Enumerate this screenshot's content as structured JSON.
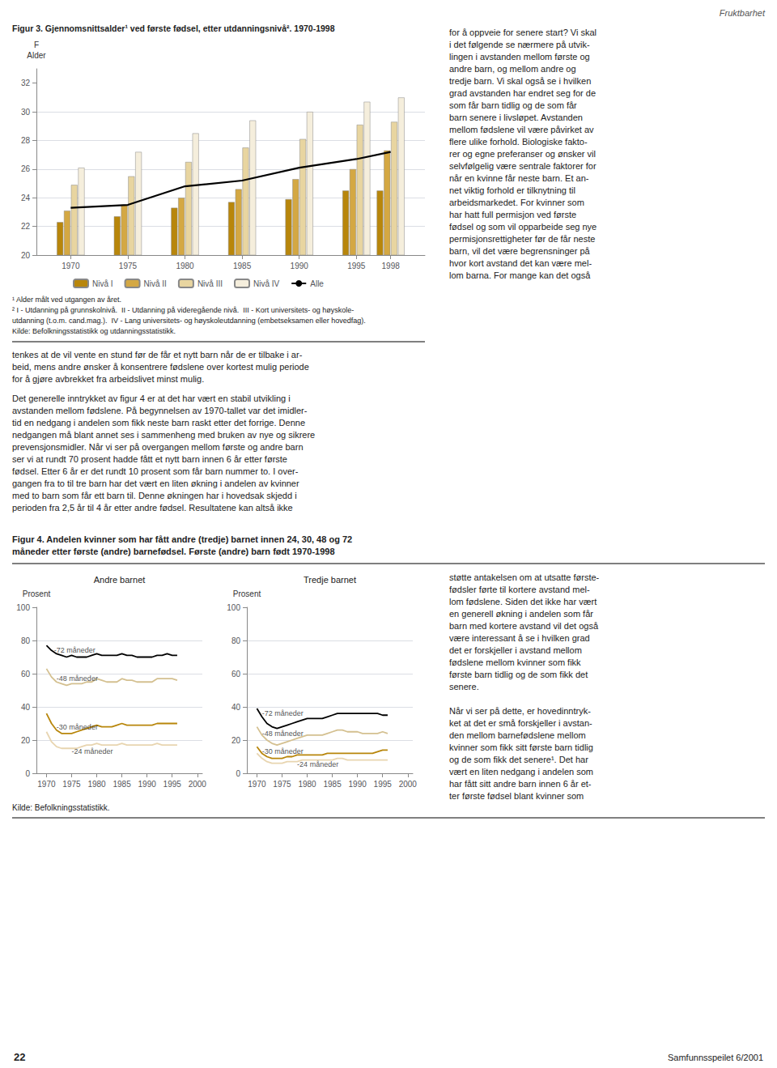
{
  "page": {
    "header": "Fruktbarhet",
    "footer_left": "22",
    "footer_right": "Samfunnsspeilet 6/2001",
    "column_text_1": "for å oppveie for senere start? Vi skal\ni det følgende se nærmere på utvik-\nlingen i avstanden mellom første og\nandre barn, og mellom andre og\ntredje barn. Vi skal også se i hvilken\ngrad avstanden har endret seg for de\nsom får barn tidlig og de som får\nbarn senere i livsløpet. Avstanden\nmellom fødslene vil være påvirket av\nflere ulike forhold. Biologiske fakto-\nrer og egne preferanser og ønsker vil\nselvfølgelig være sentrale faktorer for\nnår en kvinne får neste barn. Et an-\nnet viktig forhold er tilknytning til\narbeidsmarkedet. For kvinner som\nhar hatt full permisjon ved første\nfødsel og som vil opparbeide seg nye\npermisjonsrettigheter før de får neste\nbarn, vil det være begrensninger på\nhvor kort avstand det kan være mel-\nlom barna. For mange kan det også",
    "full_text_1": "tenkes at de vil vente en stund før de får et nytt barn når de er tilbake i ar-\nbeid, mens andre ønsker å konsentrere fødslene over kortest mulig periode\nfor å gjøre avbrekket fra arbeidslivet minst mulig.",
    "full_text_2": "Det generelle inntrykket av figur 4 er at det har vært en stabil utvikling i\navstanden mellom fødslene. På begynnelsen av 1970-tallet var det imidler-\ntid en nedgang i andelen som fikk neste barn raskt etter det forrige. Denne\nnedgangen må blant annet ses i sammenheng med bruken av nye og sikrere\nprevensjonsmidler. Når vi ser på overgangen mellom første og andre barn\nser vi at rundt 70 prosent hadde fått et nytt barn innen 6 år etter første\nfødsel. Etter 6 år er det rundt 10 prosent som får barn nummer to. I over-\ngangen fra to til tre barn har det vært en liten økning i andelen av kvinner\nmed to barn som får ett barn til. Denne økningen har i hovedsak skjedd i\nperioden fra 2,5 år til 4 år etter andre fødsel. Resultatene kan altså ikke",
    "column_text_2": "støtte antakelsen om at utsatte første-\nfødsler førte til kortere avstand mel-\nlom fødslene. Siden det ikke har vært\nen generell økning i andelen som får\nbarn med kortere avstand vil det også\nvære interessant å se i hvilken grad\ndet er forskjeller i avstand mellom\nfødslene mellom kvinner som fikk\nførste barn tidlig og de som fikk det\nsenere.",
    "column_text_3": "Når vi ser på dette, er hovedinntryk-\nket at det er små forskjeller i avstan-\nden mellom barnefødslene mellom\nkvinner som fikk sitt første barn tidlig\nog de som fikk det senere¹. Det har\nvært en liten nedgang i andelen som\nhar fått sitt andre barn innen 6 år et-\nter første fødsel blant kvinner som",
    "fig4_title": [
      "Figur 4. Andelen kvinner som har fått andre (tredje) barnet innen 24, 30, 48 og 72",
      "måneder etter første (andre) barnefødsel. Første (andre) barn født 1970-1998"
    ],
    "fig4_note": "Kilde: Befolkningsstatistikk."
  },
  "chart_data": [
    {
      "type": "bar",
      "title": "Figur 3. Gjennomsnittsalder¹ ved første fødsel, etter utdanningsnivå². 1970-1998",
      "ylabel": "F\nAlder",
      "x": [
        1970,
        1975,
        1980,
        1985,
        1990,
        1995,
        1998
      ],
      "series": [
        {
          "name": "Nivå I",
          "color": "#b8860b",
          "values": [
            22.3,
            22.7,
            23.3,
            23.7,
            23.9,
            24.5,
            24.5
          ]
        },
        {
          "name": "Nivå II",
          "color": "#d4a843",
          "values": [
            23.1,
            23.5,
            24.0,
            24.6,
            25.3,
            26.0,
            27.3
          ]
        },
        {
          "name": "Nivå III",
          "color": "#e8d5a0",
          "values": [
            24.9,
            25.5,
            26.5,
            27.5,
            28.1,
            29.1,
            29.3
          ]
        },
        {
          "name": "Nivå IV",
          "color": "#f5eedc",
          "values": [
            26.1,
            27.2,
            28.5,
            29.4,
            30.0,
            30.7,
            31.0
          ]
        },
        {
          "name": "Alle",
          "type": "line",
          "color": "#000000",
          "values": [
            23.3,
            23.5,
            24.8,
            25.2,
            26.1,
            26.7,
            27.2
          ]
        }
      ],
      "xlim": [
        1967,
        2001
      ],
      "xticks": [
        1970,
        1975,
        1980,
        1985,
        1990,
        1995,
        1998
      ],
      "ylim": [
        20,
        33
      ],
      "yticks": [
        20,
        22,
        24,
        26,
        28,
        30,
        32
      ],
      "grid": true,
      "legend": "bottom",
      "notes": [
        "¹ Alder målt ved utgangen av året.",
        "² I - Utdanning på grunnskolnivå.  II - Utdanning på videregående nivå.  III - Kort universitets- og høyskole-",
        "utdanning (t.o.m. cand.mag.).  IV - Lang universitets- og høyskoleutdanning (embetseksamen eller hovedfag).",
        "Kilde: Befolkningsstatistikk og utdanningsstatistikk."
      ]
    },
    {
      "type": "line",
      "title": "Andre barnet",
      "ylabel": "Prosent",
      "x": [
        1970,
        1971,
        1972,
        1973,
        1974,
        1975,
        1976,
        1977,
        1978,
        1979,
        1980,
        1981,
        1982,
        1983,
        1984,
        1985,
        1986,
        1987,
        1988,
        1989,
        1990,
        1991,
        1992,
        1993,
        1994,
        1995,
        1996
      ],
      "series": [
        {
          "color": "#000000",
          "values": [
            77,
            74,
            72,
            71,
            70,
            71,
            70,
            70,
            70,
            71,
            72,
            71,
            71,
            71,
            71,
            72,
            71,
            71,
            70,
            70,
            70,
            70,
            71,
            71,
            72,
            71,
            71
          ]
        },
        {
          "color": "#d4c090",
          "values": [
            63,
            58,
            55,
            54,
            53,
            54,
            54,
            54,
            55,
            55,
            57,
            56,
            55,
            55,
            55,
            57,
            56,
            56,
            55,
            55,
            55,
            55,
            57,
            57,
            57,
            57,
            56
          ]
        },
        {
          "color": "#b8860b",
          "values": [
            36,
            30,
            26,
            24,
            24,
            24,
            25,
            26,
            27,
            28,
            29,
            28,
            28,
            28,
            29,
            30,
            29,
            29,
            29,
            29,
            29,
            29,
            30,
            30,
            30,
            30,
            30
          ]
        },
        {
          "color": "#e8d5b0",
          "values": [
            25,
            19,
            16,
            15,
            15,
            15,
            15,
            16,
            17,
            17,
            18,
            17,
            17,
            17,
            17,
            18,
            17,
            17,
            17,
            17,
            17,
            17,
            18,
            17,
            17,
            17,
            17
          ]
        }
      ],
      "xlim": [
        1968,
        2001
      ],
      "xticks": [
        1970,
        1975,
        1980,
        1985,
        1990,
        1995,
        2000
      ],
      "ylim": [
        0,
        100
      ],
      "yticks": [
        0,
        20,
        40,
        60,
        80,
        100
      ],
      "grid": true,
      "annotations": [
        {
          "text": "-72 måneder",
          "x": 1971.5,
          "y": 74
        },
        {
          "text": "-48 måneder",
          "x": 1972,
          "y": 57
        },
        {
          "text": "-30 måneder",
          "x": 1972,
          "y": 28
        },
        {
          "text": "-24 måneder",
          "x": 1975,
          "y": 13
        }
      ]
    },
    {
      "type": "line",
      "title": "Tredje barnet",
      "ylabel": "Prosent",
      "x": [
        1970,
        1971,
        1972,
        1973,
        1974,
        1975,
        1976,
        1977,
        1978,
        1979,
        1980,
        1981,
        1982,
        1983,
        1984,
        1985,
        1986,
        1987,
        1988,
        1989,
        1990,
        1991,
        1992,
        1993,
        1994,
        1995,
        1996
      ],
      "series": [
        {
          "color": "#000000",
          "values": [
            39,
            34,
            30,
            28,
            27,
            28,
            29,
            30,
            31,
            32,
            33,
            33,
            33,
            33,
            34,
            35,
            36,
            36,
            36,
            36,
            36,
            36,
            36,
            36,
            36,
            35,
            35
          ]
        },
        {
          "color": "#d4c090",
          "values": [
            28,
            23,
            20,
            18,
            17,
            18,
            19,
            20,
            21,
            22,
            23,
            23,
            23,
            23,
            24,
            25,
            26,
            26,
            25,
            25,
            25,
            24,
            24,
            24,
            24,
            25,
            24
          ]
        },
        {
          "color": "#b8860b",
          "values": [
            16,
            12,
            10,
            9,
            9,
            9,
            10,
            10,
            11,
            11,
            11,
            11,
            11,
            11,
            12,
            12,
            12,
            12,
            12,
            12,
            12,
            12,
            12,
            12,
            13,
            14,
            14
          ]
        },
        {
          "color": "#e8d5b0",
          "values": [
            12,
            9,
            7,
            6,
            6,
            6,
            7,
            7,
            7,
            8,
            8,
            8,
            8,
            8,
            8,
            8,
            9,
            9,
            8,
            8,
            8,
            8,
            8,
            8,
            8,
            8,
            8
          ]
        }
      ],
      "xlim": [
        1968,
        2001
      ],
      "xticks": [
        1970,
        1975,
        1980,
        1985,
        1990,
        1995,
        2000
      ],
      "ylim": [
        0,
        100
      ],
      "yticks": [
        0,
        20,
        40,
        60,
        80,
        100
      ],
      "grid": true,
      "annotations": [
        {
          "text": "-72 måneder",
          "x": 1971,
          "y": 36
        },
        {
          "text": "-48 måneder",
          "x": 1971,
          "y": 24
        },
        {
          "text": "-30 måneder",
          "x": 1971,
          "y": 13
        },
        {
          "text": "-24 måneder",
          "x": 1978,
          "y": 5.5
        }
      ]
    }
  ]
}
